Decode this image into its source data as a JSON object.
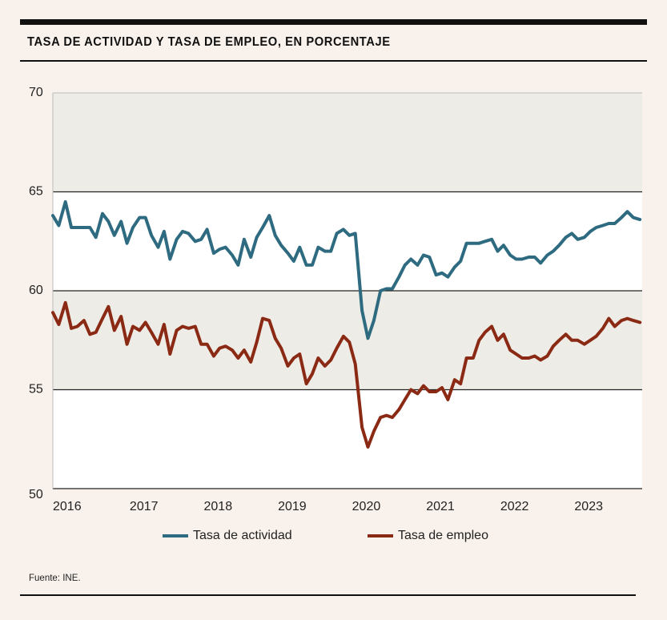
{
  "title": "TASA DE ACTIVIDAD Y TASA DE EMPLEO, EN PORCENTAJE",
  "source": "Fuente: INE.",
  "colors": {
    "background": "#f9f2ec",
    "band": "#eeece6",
    "actividad": "#2e6b80",
    "empleo": "#8b2a14",
    "grid": "#222222"
  },
  "chart_data": {
    "type": "line",
    "title": "TASA DE ACTIVIDAD Y TASA DE EMPLEO, EN PORCENTAJE",
    "xlabel": "",
    "ylabel": "",
    "ylim": [
      50,
      70
    ],
    "yticks": [
      "70",
      "65",
      "60",
      "55",
      "50"
    ],
    "xlim": [
      2016.0,
      2023.95
    ],
    "xticks": [
      "2016",
      "2017",
      "2018",
      "2019",
      "2020",
      "2021",
      "2022",
      "2023"
    ],
    "grid": true,
    "legend": "bottom",
    "series": [
      {
        "name": "Tasa de actividad",
        "color": "#2e6b80",
        "x": [
          2016.0,
          2016.08,
          2016.17,
          2016.25,
          2016.33,
          2016.42,
          2016.5,
          2016.58,
          2016.67,
          2016.75,
          2016.83,
          2016.92,
          2017.0,
          2017.08,
          2017.17,
          2017.25,
          2017.33,
          2017.42,
          2017.5,
          2017.58,
          2017.67,
          2017.75,
          2017.83,
          2017.92,
          2018.0,
          2018.08,
          2018.17,
          2018.25,
          2018.33,
          2018.42,
          2018.5,
          2018.58,
          2018.67,
          2018.75,
          2018.83,
          2018.92,
          2019.0,
          2019.08,
          2019.17,
          2019.25,
          2019.33,
          2019.42,
          2019.5,
          2019.58,
          2019.67,
          2019.75,
          2019.83,
          2019.92,
          2020.0,
          2020.08,
          2020.17,
          2020.25,
          2020.33,
          2020.42,
          2020.5,
          2020.58,
          2020.67,
          2020.75,
          2020.83,
          2020.92,
          2021.0,
          2021.08,
          2021.17,
          2021.25,
          2021.33,
          2021.42,
          2021.5,
          2021.58,
          2021.67,
          2021.75,
          2021.83,
          2021.92,
          2022.0,
          2022.08,
          2022.17,
          2022.25,
          2022.33,
          2022.42,
          2022.5,
          2022.58,
          2022.67,
          2022.75,
          2022.83,
          2022.92,
          2023.0,
          2023.08,
          2023.17,
          2023.25,
          2023.33,
          2023.42,
          2023.5,
          2023.58,
          2023.67,
          2023.75,
          2023.83,
          2023.92
        ],
        "values": [
          63.8,
          63.3,
          64.5,
          63.2,
          63.2,
          63.2,
          63.2,
          62.7,
          63.9,
          63.5,
          62.8,
          63.5,
          62.4,
          63.2,
          63.7,
          63.7,
          62.8,
          62.2,
          63.0,
          61.6,
          62.6,
          63.0,
          62.9,
          62.5,
          62.6,
          63.1,
          61.9,
          62.1,
          62.2,
          61.8,
          61.3,
          62.6,
          61.7,
          62.7,
          63.2,
          63.8,
          62.8,
          62.3,
          61.9,
          61.5,
          62.2,
          61.3,
          61.3,
          62.2,
          62.0,
          62.0,
          62.9,
          63.1,
          62.8,
          62.9,
          59.0,
          57.6,
          58.5,
          60.0,
          60.1,
          60.1,
          60.7,
          61.3,
          61.6,
          61.3,
          61.8,
          61.7,
          60.8,
          60.9,
          60.7,
          61.2,
          61.5,
          62.4,
          62.4,
          62.4,
          62.5,
          62.6,
          62.0,
          62.3,
          61.8,
          61.6,
          61.6,
          61.7,
          61.7,
          61.4,
          61.8,
          62.0,
          62.3,
          62.7,
          62.9,
          62.6,
          62.7,
          63.0,
          63.2,
          63.3,
          63.4,
          63.4,
          63.7,
          64.0,
          63.7,
          63.6
        ]
      },
      {
        "name": "Tasa de empleo",
        "color": "#8b2a14",
        "x": [
          2016.0,
          2016.08,
          2016.17,
          2016.25,
          2016.33,
          2016.42,
          2016.5,
          2016.58,
          2016.67,
          2016.75,
          2016.83,
          2016.92,
          2017.0,
          2017.08,
          2017.17,
          2017.25,
          2017.33,
          2017.42,
          2017.5,
          2017.58,
          2017.67,
          2017.75,
          2017.83,
          2017.92,
          2018.0,
          2018.08,
          2018.17,
          2018.25,
          2018.33,
          2018.42,
          2018.5,
          2018.58,
          2018.67,
          2018.75,
          2018.83,
          2018.92,
          2019.0,
          2019.08,
          2019.17,
          2019.25,
          2019.33,
          2019.42,
          2019.5,
          2019.58,
          2019.67,
          2019.75,
          2019.83,
          2019.92,
          2020.0,
          2020.08,
          2020.17,
          2020.25,
          2020.33,
          2020.42,
          2020.5,
          2020.58,
          2020.67,
          2020.75,
          2020.83,
          2020.92,
          2021.0,
          2021.08,
          2021.17,
          2021.25,
          2021.33,
          2021.42,
          2021.5,
          2021.58,
          2021.67,
          2021.75,
          2021.83,
          2021.92,
          2022.0,
          2022.08,
          2022.17,
          2022.25,
          2022.33,
          2022.42,
          2022.5,
          2022.58,
          2022.67,
          2022.75,
          2022.83,
          2022.92,
          2023.0,
          2023.08,
          2023.17,
          2023.25,
          2023.33,
          2023.42,
          2023.5,
          2023.58,
          2023.67,
          2023.75,
          2023.83,
          2023.92
        ],
        "values": [
          58.9,
          58.3,
          59.4,
          58.1,
          58.2,
          58.5,
          57.8,
          57.9,
          58.6,
          59.2,
          58.0,
          58.7,
          57.3,
          58.2,
          58.0,
          58.4,
          57.9,
          57.3,
          58.3,
          56.8,
          58.0,
          58.2,
          58.1,
          58.2,
          57.3,
          57.3,
          56.7,
          57.1,
          57.2,
          57.0,
          56.6,
          57.0,
          56.4,
          57.4,
          58.6,
          58.5,
          57.6,
          57.1,
          56.2,
          56.6,
          56.8,
          55.3,
          55.8,
          56.6,
          56.2,
          56.5,
          57.1,
          57.7,
          57.4,
          56.3,
          53.1,
          52.1,
          52.9,
          53.6,
          53.7,
          53.6,
          54.0,
          54.5,
          55.0,
          54.8,
          55.2,
          54.9,
          54.9,
          55.1,
          54.5,
          55.5,
          55.3,
          56.6,
          56.6,
          57.5,
          57.9,
          58.2,
          57.5,
          57.8,
          57.0,
          56.8,
          56.6,
          56.6,
          56.7,
          56.5,
          56.7,
          57.2,
          57.5,
          57.8,
          57.5,
          57.5,
          57.3,
          57.5,
          57.7,
          58.1,
          58.6,
          58.2,
          58.5,
          58.6,
          58.5,
          58.4
        ]
      }
    ]
  }
}
